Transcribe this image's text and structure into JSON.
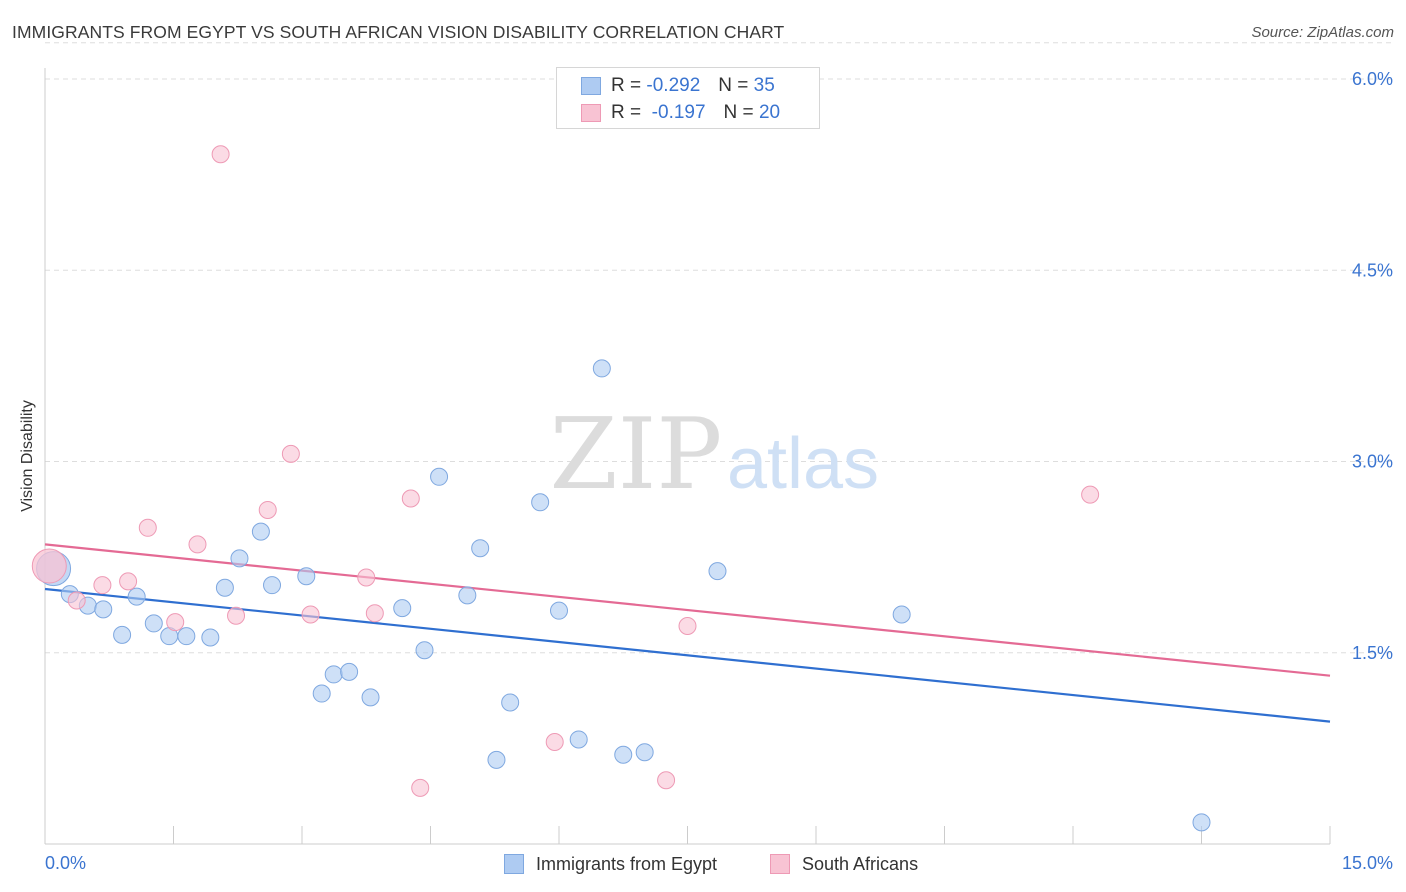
{
  "header": {
    "title": "IMMIGRANTS FROM EGYPT VS SOUTH AFRICAN VISION DISABILITY CORRELATION CHART",
    "source": "Source: ZipAtlas.com"
  },
  "watermark": {
    "zip": "ZIP",
    "atlas": "atlas"
  },
  "legend": {
    "rows": [
      {
        "r_label": "R =",
        "r_value": "-0.292",
        "n_label": "N =",
        "n_value": "35"
      },
      {
        "r_label": "R =",
        "r_value": "-0.197",
        "n_label": "N =",
        "n_value": "20"
      }
    ]
  },
  "colors": {
    "blue_fill": "#aecbf2",
    "blue_stroke": "#7fa8e0",
    "blue_line": "#2f6fd0",
    "pink_fill": "#f8c3d3",
    "pink_stroke": "#ee9ab5",
    "pink_line": "#e46a94",
    "axis_label": "#3a74d0",
    "grid": "#dddddd"
  },
  "chart_data": {
    "type": "scatter",
    "title": "IMMIGRANTS FROM EGYPT VS SOUTH AFRICAN VISION DISABILITY CORRELATION CHART",
    "xlabel": "",
    "ylabel": "Vision Disability",
    "xlim": [
      0,
      15
    ],
    "ylim": [
      0,
      6.3
    ],
    "x_tick_labels": [
      "0.0%",
      "15.0%"
    ],
    "y_ticks": [
      1.5,
      3.0,
      4.5,
      6.0
    ],
    "y_tick_labels": [
      "1.5%",
      "3.0%",
      "4.5%",
      "6.0%"
    ],
    "grid": true,
    "legend_placement": "bottom-center",
    "series": [
      {
        "name": "Immigrants from Egypt",
        "r": -0.292,
        "n": 35,
        "trend": {
          "x": [
            0,
            15
          ],
          "y": [
            2.0,
            0.96
          ]
        },
        "points": [
          {
            "x": 0.1,
            "y": 2.16
          },
          {
            "x": 0.29,
            "y": 1.96
          },
          {
            "x": 0.5,
            "y": 1.87
          },
          {
            "x": 0.68,
            "y": 1.84
          },
          {
            "x": 0.9,
            "y": 1.64
          },
          {
            "x": 1.07,
            "y": 1.94
          },
          {
            "x": 1.27,
            "y": 1.73
          },
          {
            "x": 1.45,
            "y": 1.63
          },
          {
            "x": 1.65,
            "y": 1.63
          },
          {
            "x": 1.93,
            "y": 1.62
          },
          {
            "x": 2.1,
            "y": 2.01
          },
          {
            "x": 2.27,
            "y": 2.24
          },
          {
            "x": 2.52,
            "y": 2.45
          },
          {
            "x": 2.65,
            "y": 2.03
          },
          {
            "x": 3.05,
            "y": 2.1
          },
          {
            "x": 3.23,
            "y": 1.18
          },
          {
            "x": 3.37,
            "y": 1.33
          },
          {
            "x": 3.55,
            "y": 1.35
          },
          {
            "x": 3.8,
            "y": 1.15
          },
          {
            "x": 4.17,
            "y": 1.85
          },
          {
            "x": 4.43,
            "y": 1.52
          },
          {
            "x": 4.6,
            "y": 2.88
          },
          {
            "x": 4.93,
            "y": 1.95
          },
          {
            "x": 5.08,
            "y": 2.32
          },
          {
            "x": 5.27,
            "y": 0.66
          },
          {
            "x": 5.43,
            "y": 1.11
          },
          {
            "x": 5.78,
            "y": 2.68
          },
          {
            "x": 6.0,
            "y": 1.83
          },
          {
            "x": 6.23,
            "y": 0.82
          },
          {
            "x": 6.5,
            "y": 3.73
          },
          {
            "x": 6.75,
            "y": 0.7
          },
          {
            "x": 7.0,
            "y": 0.72
          },
          {
            "x": 7.85,
            "y": 2.14
          },
          {
            "x": 10.0,
            "y": 1.8
          },
          {
            "x": 13.5,
            "y": 0.17
          }
        ]
      },
      {
        "name": "South Africans",
        "r": -0.197,
        "n": 20,
        "trend": {
          "x": [
            0,
            15
          ],
          "y": [
            2.35,
            1.32
          ]
        },
        "points": [
          {
            "x": 0.05,
            "y": 2.18
          },
          {
            "x": 0.37,
            "y": 1.91
          },
          {
            "x": 0.67,
            "y": 2.03
          },
          {
            "x": 0.97,
            "y": 2.06
          },
          {
            "x": 1.2,
            "y": 2.48
          },
          {
            "x": 1.52,
            "y": 1.74
          },
          {
            "x": 1.78,
            "y": 2.35
          },
          {
            "x": 2.05,
            "y": 5.41
          },
          {
            "x": 2.23,
            "y": 1.79
          },
          {
            "x": 2.6,
            "y": 2.62
          },
          {
            "x": 2.87,
            "y": 3.06
          },
          {
            "x": 3.1,
            "y": 1.8
          },
          {
            "x": 3.75,
            "y": 2.09
          },
          {
            "x": 3.85,
            "y": 1.81
          },
          {
            "x": 4.27,
            "y": 2.71
          },
          {
            "x": 4.38,
            "y": 0.44
          },
          {
            "x": 5.95,
            "y": 0.8
          },
          {
            "x": 7.25,
            "y": 0.5
          },
          {
            "x": 7.5,
            "y": 1.71
          },
          {
            "x": 12.2,
            "y": 2.74
          }
        ]
      }
    ]
  }
}
